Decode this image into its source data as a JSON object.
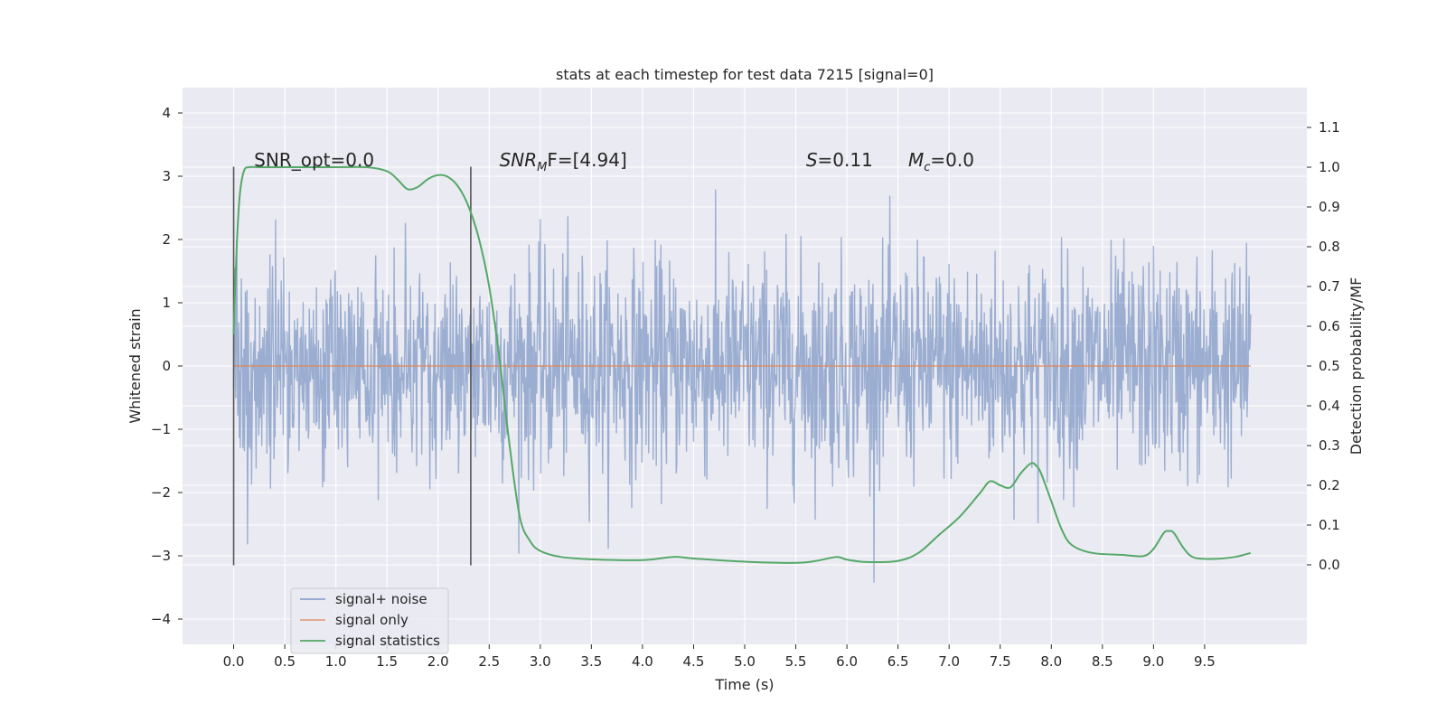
{
  "chart_data": {
    "type": "line",
    "title": "stats at each timestep for test data 7215 [signal=0]",
    "xlabel": "Time (s)",
    "ylabel": "Whitened strain",
    "ylabel_right": "Detection probability/MF",
    "xlim": [
      -0.5,
      10.5
    ],
    "ylim": [
      -4.4,
      4.4
    ],
    "ylim_right": [
      -0.2,
      1.2
    ],
    "x_ticks": [
      0.0,
      0.5,
      1.0,
      1.5,
      2.0,
      2.5,
      3.0,
      3.5,
      4.0,
      4.5,
      5.0,
      5.5,
      6.0,
      6.5,
      7.0,
      7.5,
      8.0,
      8.5,
      9.0,
      9.5
    ],
    "x_tick_labels": [
      "0.0",
      "0.5",
      "1.0",
      "1.5",
      "2.0",
      "2.5",
      "3.0",
      "3.5",
      "4.0",
      "4.5",
      "5.0",
      "5.5",
      "6.0",
      "6.5",
      "7.0",
      "7.5",
      "8.0",
      "8.5",
      "9.0",
      "9.5"
    ],
    "y_ticks": [
      4,
      3,
      2,
      1,
      0,
      -1,
      -2,
      -3,
      -4
    ],
    "y_tick_labels": [
      "4",
      "3",
      "2",
      "1",
      "0",
      "−1",
      "−2",
      "−3",
      "−4"
    ],
    "y_right_ticks": [
      1.1,
      1.0,
      0.9,
      0.8,
      0.7,
      0.6,
      0.5,
      0.4,
      0.3,
      0.2,
      0.1,
      0.0
    ],
    "y_right_tick_labels": [
      "1.1",
      "1.0",
      "0.9",
      "0.8",
      "0.7",
      "0.6",
      "0.5",
      "0.4",
      "0.3",
      "0.2",
      "0.1",
      "0.0"
    ],
    "grid": true,
    "legend_position": "lower-left",
    "colors": {
      "noise": "#4c72b0",
      "signal": "#dd8452",
      "statistics": "#55a868",
      "background": "#eaeaf2",
      "marker": "#555555"
    },
    "series": [
      {
        "name": "signal+ noise",
        "axis": "left",
        "sample_rate_hz": 200,
        "x_range": [
          0.0,
          9.95
        ],
        "noise_sigma": 0.85
      },
      {
        "name": "signal only",
        "axis": "left",
        "x": [
          0.0,
          9.95
        ],
        "y": [
          0.0,
          0.0
        ]
      },
      {
        "name": "signal statistics",
        "axis": "right",
        "x": [
          0.0,
          0.03,
          0.06,
          0.1,
          0.15,
          0.25,
          0.5,
          1.0,
          1.3,
          1.5,
          1.6,
          1.7,
          1.8,
          1.9,
          2.0,
          2.1,
          2.2,
          2.3,
          2.4,
          2.5,
          2.6,
          2.7,
          2.8,
          2.9,
          3.0,
          3.2,
          3.5,
          4.0,
          4.3,
          4.5,
          5.0,
          5.5,
          5.7,
          5.9,
          6.0,
          6.2,
          6.5,
          6.7,
          6.9,
          7.1,
          7.3,
          7.4,
          7.5,
          7.6,
          7.7,
          7.8,
          7.85,
          7.9,
          8.0,
          8.1,
          8.2,
          8.4,
          8.7,
          8.9,
          9.0,
          9.1,
          9.15,
          9.2,
          9.3,
          9.4,
          9.6,
          9.8,
          9.95
        ],
        "y": [
          0.58,
          0.8,
          0.93,
          0.99,
          1.0,
          1.0,
          1.0,
          1.0,
          1.0,
          0.99,
          0.97,
          0.945,
          0.95,
          0.97,
          0.98,
          0.975,
          0.95,
          0.9,
          0.82,
          0.7,
          0.52,
          0.3,
          0.12,
          0.06,
          0.035,
          0.02,
          0.014,
          0.012,
          0.02,
          0.016,
          0.008,
          0.005,
          0.01,
          0.02,
          0.013,
          0.007,
          0.01,
          0.03,
          0.075,
          0.12,
          0.18,
          0.21,
          0.2,
          0.195,
          0.23,
          0.255,
          0.25,
          0.23,
          0.16,
          0.09,
          0.05,
          0.03,
          0.025,
          0.022,
          0.04,
          0.08,
          0.085,
          0.08,
          0.04,
          0.018,
          0.015,
          0.02,
          0.03
        ]
      }
    ],
    "vertical_lines": [
      {
        "x": 0.0,
        "y_range": [
          -3.15,
          3.15
        ]
      },
      {
        "x": 2.32,
        "y_range": [
          -3.15,
          3.15
        ]
      }
    ],
    "annotations": [
      {
        "id": "snr-opt",
        "text": "SNR_opt=0.0",
        "x": 0.2,
        "y_right": 1.0
      },
      {
        "id": "snr-mf",
        "parts": [
          "SNR",
          "M",
          "F=[4.94]"
        ],
        "x": 2.6,
        "y_right": 1.0
      },
      {
        "id": "s-value",
        "parts": [
          "S",
          "=0.11"
        ],
        "x": 5.6,
        "y_right": 1.0
      },
      {
        "id": "mc-value",
        "parts": [
          "M",
          "c",
          "=0.0"
        ],
        "x": 6.6,
        "y_right": 1.0
      }
    ]
  }
}
